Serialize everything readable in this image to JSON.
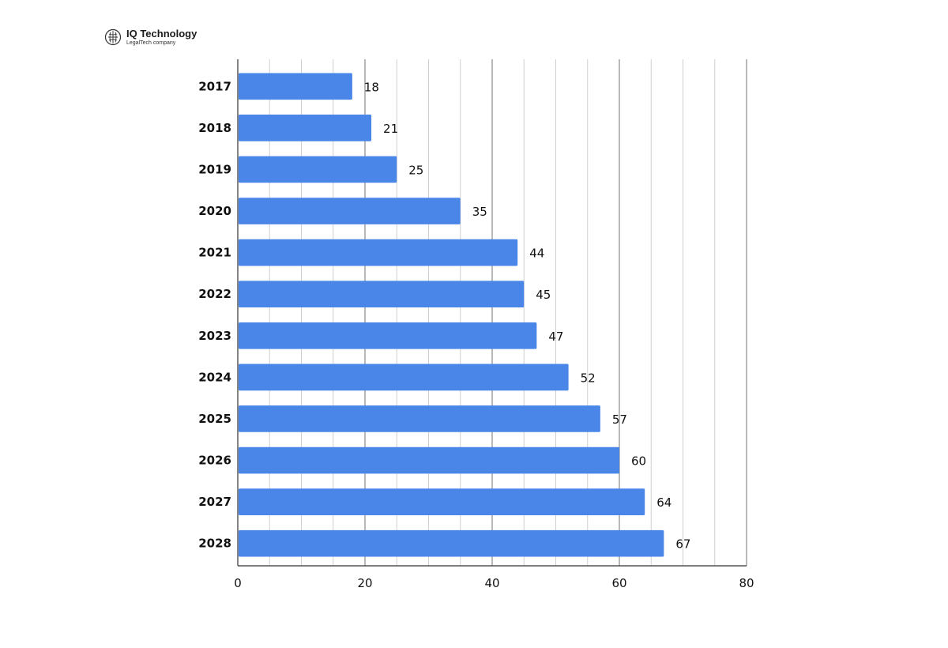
{
  "brand": {
    "name": "IQ Technology",
    "tagline": "LegalTech company",
    "icon": "brain-icon"
  },
  "chart_data": {
    "type": "bar",
    "orientation": "horizontal",
    "categories": [
      "2017",
      "2018",
      "2019",
      "2020",
      "2021",
      "2022",
      "2023",
      "2024",
      "2025",
      "2026",
      "2027",
      "2028"
    ],
    "values": [
      18,
      21,
      25,
      35,
      44,
      45,
      47,
      52,
      57,
      60,
      64,
      67
    ],
    "title": "",
    "xlabel": "",
    "ylabel": "",
    "xlim": [
      0,
      80
    ],
    "x_ticks": [
      0,
      20,
      40,
      60,
      80
    ],
    "grid": true,
    "data_labels": true,
    "bar_color": "#4a86e8",
    "major_grid_color": "#8a8a8a",
    "minor_grid_color": "#cfcfcf"
  }
}
